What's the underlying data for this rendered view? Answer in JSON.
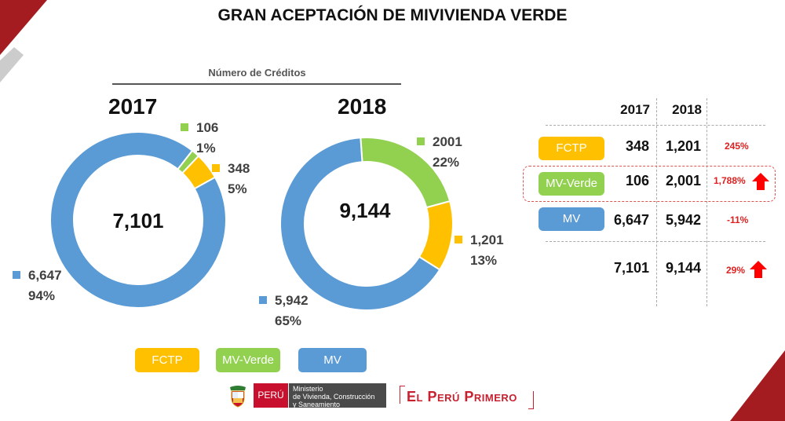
{
  "page": {
    "title": "GRAN ACEPTACIÓN DE MIVIVIENDA VERDE",
    "subtitle": "Número de Créditos"
  },
  "colors": {
    "fctp": "#FFC000",
    "mv_verde": "#92D050",
    "mv": "#5B9BD5",
    "accent_red": "#A51C20",
    "deco_gray": "#CCCCCC",
    "change_red": "#E02020"
  },
  "chart_data": [
    {
      "type": "pie",
      "variant": "donut",
      "title": "2017",
      "center_label": "7,101",
      "slices": [
        {
          "name": "MV-Verde",
          "value": 106,
          "value_label": "106",
          "pct_label": "1%"
        },
        {
          "name": "FCTP",
          "value": 348,
          "value_label": "348",
          "pct_label": "5%"
        },
        {
          "name": "MV",
          "value": 6647,
          "value_label": "6,647",
          "pct_label": "94%"
        }
      ]
    },
    {
      "type": "pie",
      "variant": "donut",
      "title": "2018",
      "center_label": "9,144",
      "slices": [
        {
          "name": "MV-Verde",
          "value": 2001,
          "value_label": "2001",
          "pct_label": "22%"
        },
        {
          "name": "FCTP",
          "value": 1201,
          "value_label": "1,201",
          "pct_label": "13%"
        },
        {
          "name": "MV",
          "value": 5942,
          "value_label": "5,942",
          "pct_label": "65%"
        }
      ]
    },
    {
      "type": "table",
      "columns": [
        "",
        "2017",
        "2018",
        ""
      ],
      "rows": [
        {
          "label": "FCTP",
          "y2017": "348",
          "y2018": "1,201",
          "change": "245%",
          "arrow": false
        },
        {
          "label": "MV-Verde",
          "y2017": "106",
          "y2018": "2,001",
          "change": "1,788%",
          "arrow": true,
          "highlighted": true
        },
        {
          "label": "MV",
          "y2017": "6,647",
          "y2018": "5,942",
          "change": "-11%",
          "arrow": false
        }
      ],
      "total": {
        "y2017": "7,101",
        "y2018": "9,144",
        "change": "29%",
        "arrow": true
      }
    }
  ],
  "legend": [
    {
      "label": "FCTP"
    },
    {
      "label": "MV-Verde"
    },
    {
      "label": "MV"
    }
  ],
  "footer": {
    "peru_label": "PERÚ",
    "ministry_lines": [
      "Ministerio",
      "de Vivienda, Construcción",
      "y Saneamiento"
    ],
    "slogan": "El Perú Primero"
  }
}
